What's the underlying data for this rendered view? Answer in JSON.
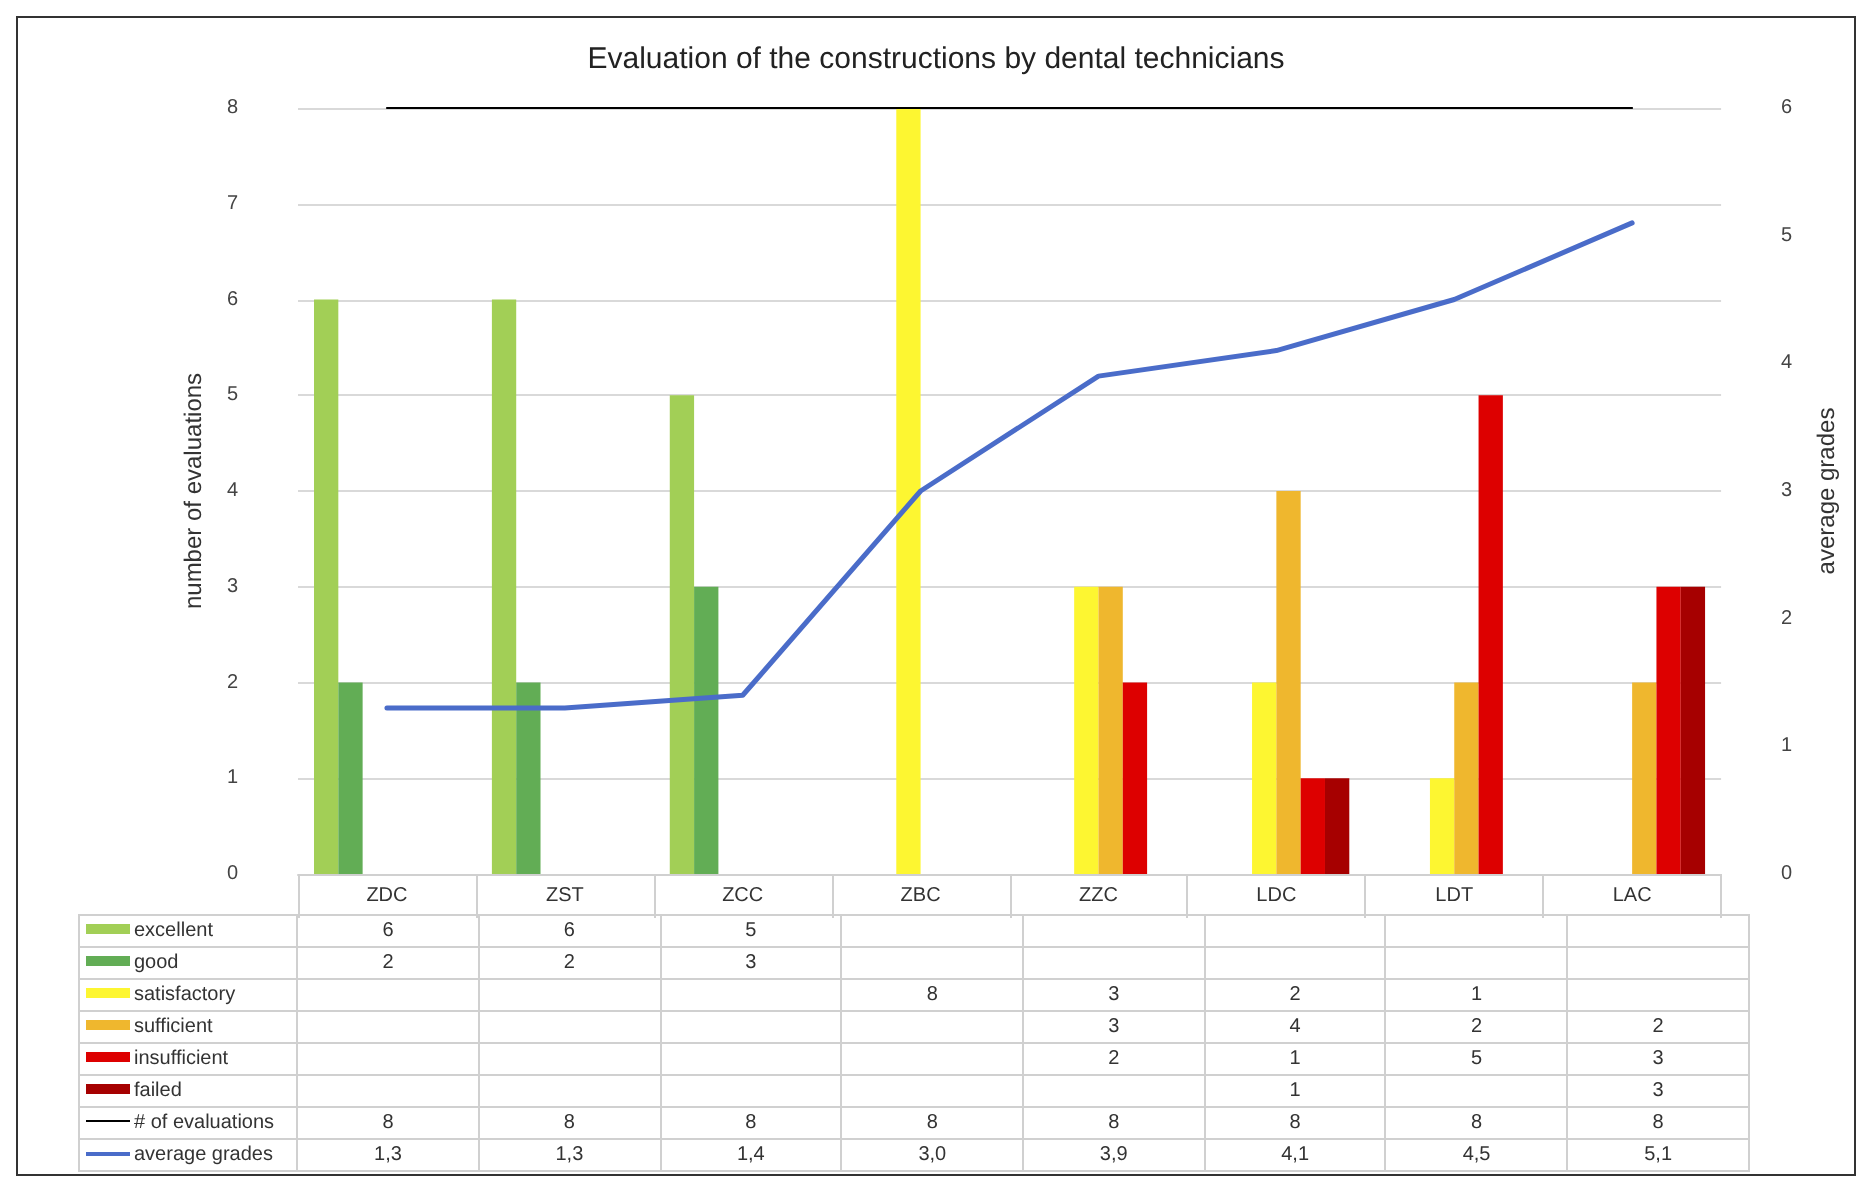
{
  "chart_data": {
    "type": "bar",
    "title": "Evaluation of the constructions by dental technicians",
    "ylabel": "number of evaluations",
    "y2label": "average grades",
    "categories": [
      "ZDC",
      "ZST",
      "ZCC",
      "ZBC",
      "ZZC",
      "LDC",
      "LDT",
      "LAC"
    ],
    "series": [
      {
        "name": "excellent",
        "color": "#a2cf56",
        "values": [
          6,
          6,
          5,
          null,
          null,
          null,
          null,
          null
        ]
      },
      {
        "name": "good",
        "color": "#62ad55",
        "values": [
          2,
          2,
          3,
          null,
          null,
          null,
          null,
          null
        ]
      },
      {
        "name": "satisfactory",
        "color": "#fdf631",
        "values": [
          null,
          null,
          null,
          8,
          3,
          2,
          1,
          null
        ]
      },
      {
        "name": "sufficient",
        "color": "#efb72e",
        "values": [
          null,
          null,
          null,
          null,
          3,
          4,
          2,
          2
        ]
      },
      {
        "name": "insufficient",
        "color": "#dd0000",
        "values": [
          null,
          null,
          null,
          null,
          2,
          1,
          5,
          3
        ]
      },
      {
        "name": "failed",
        "color": "#a60000",
        "values": [
          null,
          null,
          null,
          null,
          null,
          1,
          null,
          3
        ]
      },
      {
        "name": "# of evaluations",
        "type": "line",
        "color": "#000000",
        "values": [
          8,
          8,
          8,
          8,
          8,
          8,
          8,
          8
        ],
        "value_labels": [
          "8",
          "8",
          "8",
          "8",
          "8",
          "8",
          "8",
          "8"
        ]
      },
      {
        "name": "average grades",
        "type": "line",
        "axis": "y2",
        "color": "#4a6cc9",
        "values": [
          1.3,
          1.3,
          1.4,
          3.0,
          3.9,
          4.1,
          4.5,
          5.1
        ],
        "value_labels": [
          "1,3",
          "1,3",
          "1,4",
          "3,0",
          "3,9",
          "4,1",
          "4,5",
          "5,1"
        ]
      }
    ],
    "ylim": [
      0,
      8
    ],
    "yticks": [
      0,
      1,
      2,
      3,
      4,
      5,
      6,
      7,
      8
    ],
    "y2lim": [
      0,
      6
    ],
    "y2ticks": [
      0,
      1,
      2,
      3,
      4,
      5,
      6
    ],
    "grid": "y",
    "legend": "bottom",
    "marker": "none",
    "data_labels": true
  }
}
